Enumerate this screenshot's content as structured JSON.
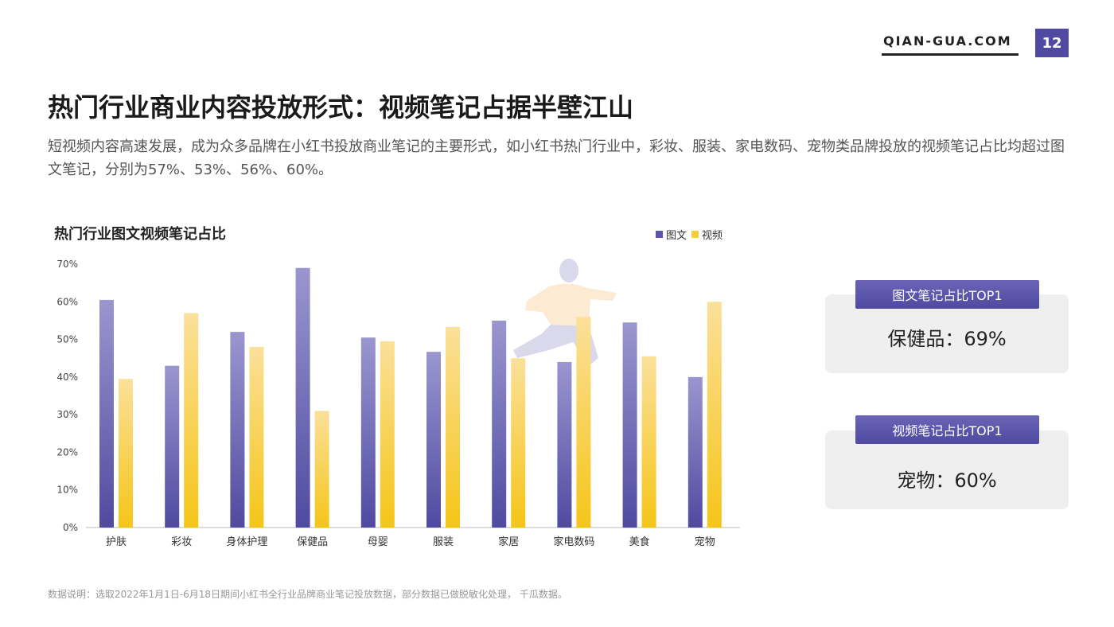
{
  "header": {
    "brand": "QIAN-GUA.COM",
    "page_number": "12"
  },
  "title": "热门行业商业内容投放形式：视频笔记占据半壁江山",
  "description": "短视频内容高速发展，成为众多品牌在小红书投放商业笔记的主要形式，如小红书热门行业中，彩妆、服装、家电数码、宠物类品牌投放的视频笔记占比均超过图文笔记，分别为57%、53%、56%、60%。",
  "chart_data": {
    "type": "bar",
    "title": "热门行业图文视频笔记占比",
    "categories": [
      "护肤",
      "彩妆",
      "身体护理",
      "保健品",
      "母婴",
      "服装",
      "家居",
      "家电数码",
      "美食",
      "宠物"
    ],
    "series": [
      {
        "name": "图文",
        "values": [
          60.5,
          43,
          52,
          69,
          50.5,
          46.7,
          55,
          44,
          54.5,
          40
        ],
        "color": "#5a55a8"
      },
      {
        "name": "视频",
        "values": [
          39.5,
          57,
          48,
          31,
          49.5,
          53.3,
          45,
          56,
          45.5,
          60
        ],
        "color": "#f7cd3a"
      }
    ],
    "y_ticks": [
      "0%",
      "10%",
      "20%",
      "30%",
      "40%",
      "50%",
      "60%",
      "70%"
    ],
    "ylim": [
      0,
      70
    ],
    "legend_position": "top-right",
    "grid": false
  },
  "cards": [
    {
      "tag": "图文笔记占比TOP1",
      "value": "保健品：69%"
    },
    {
      "tag": "视频笔记占比TOP1",
      "value": "宠物：60%"
    }
  ],
  "footnote": "数据说明：选取2022年1月1日-6月18日期间小红书全行业品牌商业笔记投放数据，部分数据已做脱敏化处理， 千瓜数据。"
}
